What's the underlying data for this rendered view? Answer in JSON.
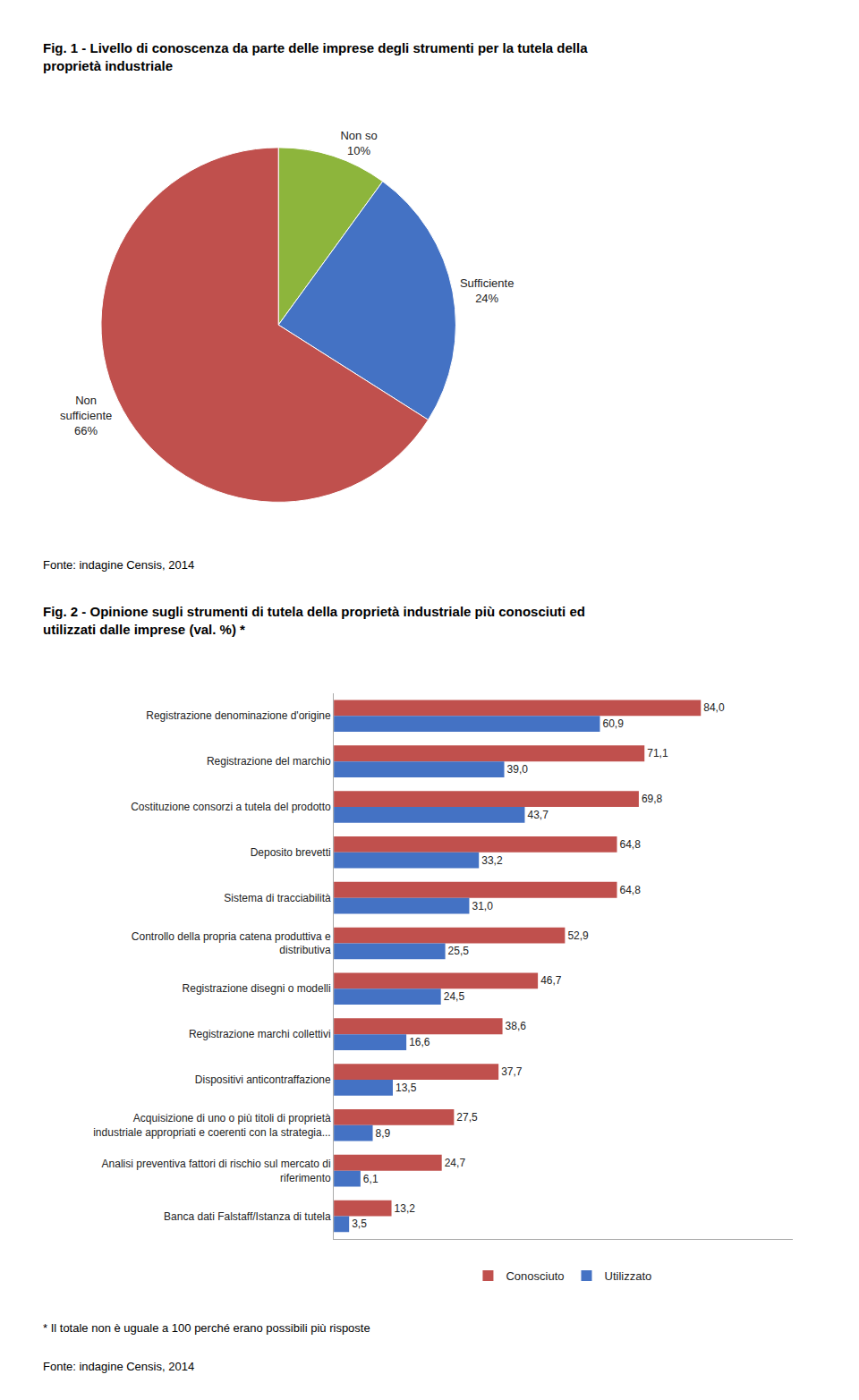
{
  "chart_data": [
    {
      "type": "pie",
      "title": "Fig. 1 - Livello di conoscenza da parte delle imprese degli strumenti per la tutela della\nproprietà industriale",
      "categories": [
        "Non so",
        "Sufficiente",
        "Non\nsufficiente"
      ],
      "values": [
        10,
        24,
        66
      ],
      "value_labels": [
        "10%",
        "24%",
        "66%"
      ],
      "colors": [
        "#8db53c",
        "#4472c4",
        "#c0504d"
      ],
      "data_labels": true,
      "annotations": [
        "Fonte: indagine Censis, 2014"
      ]
    },
    {
      "type": "bar",
      "orientation": "horizontal",
      "title": "Fig. 2 - Opinione sugli strumenti di tutela della proprietà industriale più conosciuti ed\nutilizzati dalle imprese (val. %) *",
      "categories": [
        "Registrazione denominazione d'origine",
        "Registrazione del marchio",
        "Costituzione consorzi a tutela del prodotto",
        "Deposito brevetti",
        "Sistema di tracciabilità",
        "Controllo della propria catena produttiva e\ndistributiva",
        "Registrazione disegni o modelli",
        "Registrazione marchi collettivi",
        "Dispositivi anticontraffazione",
        "Acquisizione di uno o più titoli di proprietà\nindustriale appropriati e coerenti con la strategia...",
        "Analisi preventiva fattori di rischio sul mercato di\nriferimento",
        "Banca dati Falstaff/Istanza di tutela"
      ],
      "series": [
        {
          "name": "Conosciuto",
          "color": "#c0504d",
          "values": [
            84.0,
            71.1,
            69.8,
            64.8,
            64.8,
            52.9,
            46.7,
            38.6,
            37.7,
            27.5,
            24.7,
            13.2
          ],
          "value_labels": [
            "84,0",
            "71,1",
            "69,8",
            "64,8",
            "64,8",
            "52,9",
            "46,7",
            "38,6",
            "37,7",
            "27,5",
            "24,7",
            "13,2"
          ]
        },
        {
          "name": "Utilizzato",
          "color": "#4472c4",
          "values": [
            60.9,
            39.0,
            43.7,
            33.2,
            31.0,
            25.5,
            24.5,
            16.6,
            13.5,
            8.9,
            6.1,
            3.5
          ],
          "value_labels": [
            "60,9",
            "39,0",
            "43,7",
            "33,2",
            "31,0",
            "25,5",
            "24,5",
            "16,6",
            "13,5",
            "8,9",
            "6,1",
            "3,5"
          ]
        }
      ],
      "xlim": [
        0,
        105
      ],
      "tick_labels": "y",
      "grid": false,
      "data_labels": true,
      "legend": "bottom",
      "annotations": [
        "* Il totale non è uguale a 100 perché erano possibili più risposte",
        "Fonte: indagine Censis, 2014"
      ]
    }
  ]
}
